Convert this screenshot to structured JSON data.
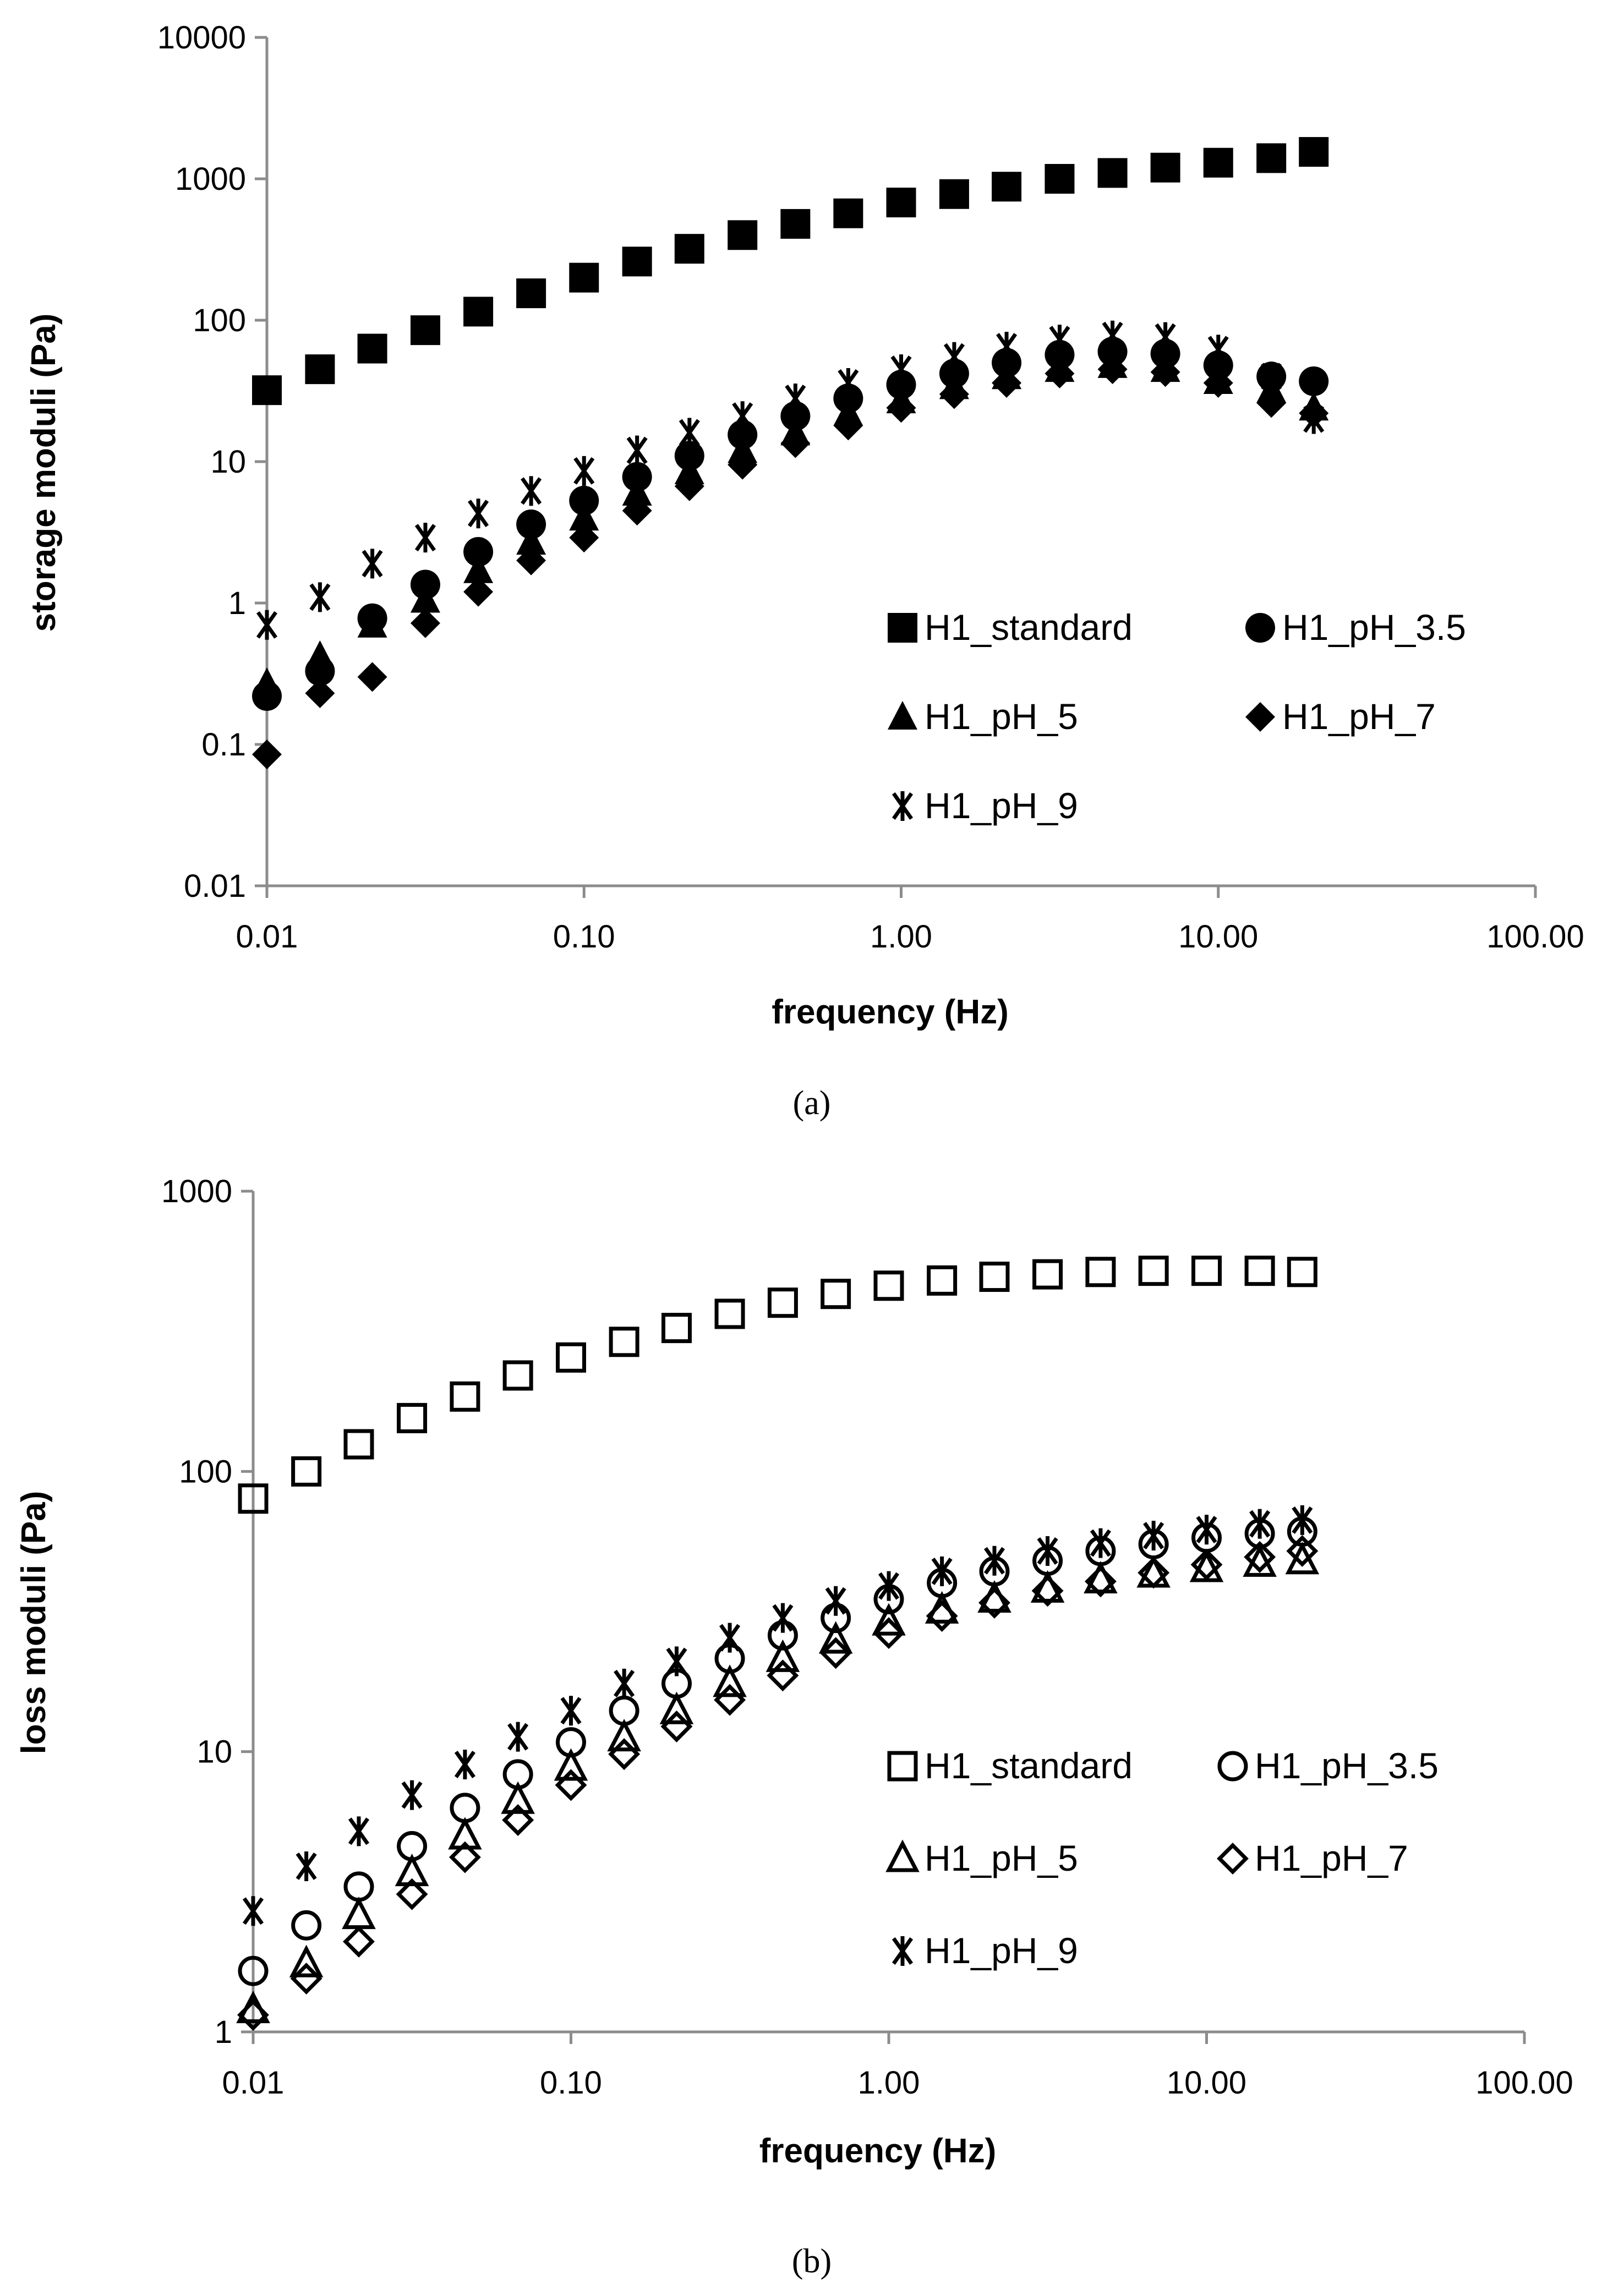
{
  "chart_data": [
    {
      "type": "scatter",
      "panel": "a",
      "caption": "(a)",
      "xlabel": "frequency (Hz)",
      "ylabel": "storage moduli (Pa)",
      "xscale": "log",
      "yscale": "log",
      "xlim": [
        0.01,
        100
      ],
      "ylim": [
        0.01,
        10000
      ],
      "xticks": [
        "0.01",
        "0.10",
        "1.00",
        "10.00",
        "100.00"
      ],
      "yticks": [
        "0.01",
        "0.1",
        "1",
        "10",
        "100",
        "1000",
        "10000"
      ],
      "x": [
        0.01,
        0.0147,
        0.0215,
        0.0316,
        0.0464,
        0.0681,
        0.1,
        0.147,
        0.215,
        0.316,
        0.464,
        0.681,
        1.0,
        1.47,
        2.15,
        3.16,
        4.64,
        6.81,
        10.0,
        14.7,
        20.0
      ],
      "legend": "lower-right, two columns",
      "series": [
        {
          "name": "H1_standard",
          "marker": "filled-square",
          "values": [
            32,
            45,
            63,
            85,
            115,
            155,
            200,
            260,
            320,
            400,
            480,
            570,
            680,
            780,
            880,
            1000,
            1100,
            1200,
            1300,
            1400,
            1550
          ]
        },
        {
          "name": "H1_pH_3.5",
          "marker": "filled-circle",
          "values": [
            0.22,
            0.33,
            0.78,
            1.35,
            2.3,
            3.6,
            5.3,
            7.8,
            11,
            15.5,
            21,
            28,
            35,
            42,
            50,
            57,
            60,
            58,
            48,
            40,
            37
          ]
        },
        {
          "name": "H1_pH_5",
          "marker": "filled-triangle",
          "values": [
            0.27,
            0.42,
            0.7,
            1.05,
            1.7,
            2.7,
            4.0,
            6.0,
            8.5,
            12,
            16,
            22,
            27,
            34,
            40,
            45,
            48,
            45,
            37,
            32,
            24
          ]
        },
        {
          "name": "H1_pH_7",
          "marker": "filled-diamond",
          "values": [
            0.085,
            0.23,
            0.3,
            0.72,
            1.2,
            2.0,
            2.9,
            4.5,
            6.7,
            9.5,
            13.5,
            18,
            24,
            30,
            36,
            42,
            45,
            43,
            36,
            26,
            22
          ]
        },
        {
          "name": "H1_pH_9",
          "marker": "asterisk",
          "values": [
            0.7,
            1.1,
            1.9,
            2.9,
            4.3,
            6.2,
            8.6,
            12,
            16,
            21,
            28,
            36,
            45,
            55,
            65,
            73,
            78,
            76,
            62,
            40,
            20
          ]
        }
      ]
    },
    {
      "type": "scatter",
      "panel": "b",
      "caption": "(b)",
      "xlabel": "frequency (Hz)",
      "ylabel": "loss moduli (Pa)",
      "xscale": "log",
      "yscale": "log",
      "xlim": [
        0.01,
        100
      ],
      "ylim": [
        1,
        1000
      ],
      "xticks": [
        "0.01",
        "0.10",
        "1.00",
        "10.00",
        "100.00"
      ],
      "yticks": [
        "1",
        "10",
        "100",
        "1000"
      ],
      "x": [
        0.01,
        0.0147,
        0.0215,
        0.0316,
        0.0464,
        0.0681,
        0.1,
        0.147,
        0.215,
        0.316,
        0.464,
        0.681,
        1.0,
        1.47,
        2.15,
        3.16,
        4.64,
        6.81,
        10.0,
        14.7,
        20.0
      ],
      "legend": "lower-right, two columns",
      "series": [
        {
          "name": "H1_standard",
          "marker": "open-square",
          "values": [
            80,
            100,
            125,
            155,
            185,
            220,
            255,
            290,
            325,
            365,
            400,
            430,
            460,
            480,
            495,
            505,
            515,
            520,
            520,
            520,
            515
          ]
        },
        {
          "name": "H1_pH_3.5",
          "marker": "open-circle",
          "values": [
            1.65,
            2.4,
            3.3,
            4.6,
            6.3,
            8.3,
            10.8,
            14,
            17.5,
            21.5,
            26,
            30,
            35,
            40,
            44,
            48,
            52,
            55,
            58,
            60,
            61
          ]
        },
        {
          "name": "H1_pH_5",
          "marker": "open-triangle",
          "values": [
            1.2,
            1.75,
            2.6,
            3.7,
            5.0,
            6.7,
            8.8,
            11.2,
            14,
            17.5,
            21.5,
            25,
            29,
            32,
            35,
            38,
            41,
            43,
            45,
            47,
            48
          ]
        },
        {
          "name": "H1_pH_7",
          "marker": "open-diamond",
          "values": [
            1.15,
            1.55,
            2.1,
            3.1,
            4.2,
            5.7,
            7.6,
            9.8,
            12.3,
            15.3,
            18.7,
            22.5,
            26.5,
            30.5,
            34,
            37.5,
            40.5,
            43.5,
            46.5,
            49.5,
            52
          ]
        },
        {
          "name": "H1_pH_9",
          "marker": "asterisk",
          "values": [
            2.7,
            3.9,
            5.2,
            7.0,
            9.0,
            11.3,
            14,
            17.5,
            21,
            25.5,
            30,
            34.5,
            39,
            44,
            48,
            52,
            55.5,
            59,
            62,
            65,
            67
          ]
        }
      ]
    }
  ]
}
